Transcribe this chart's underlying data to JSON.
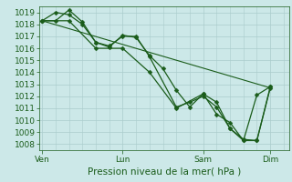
{
  "title": "",
  "xlabel": "Pression niveau de la mer( hPa )",
  "ylim": [
    1007.5,
    1019.5
  ],
  "yticks": [
    1008,
    1009,
    1010,
    1011,
    1012,
    1013,
    1014,
    1015,
    1016,
    1017,
    1018,
    1019
  ],
  "bg_color": "#cce8e8",
  "grid_color": "#aacccc",
  "line_color": "#1a5c1a",
  "marker_color": "#1a5c1a",
  "text_color": "#1a5c1a",
  "xtick_labels": [
    "| Ven",
    "| Lun",
    "| Sam",
    "| Dim"
  ],
  "xtick_positions": [
    0.0,
    3.0,
    6.0,
    8.5
  ],
  "series1_x": [
    0.0,
    0.5,
    1.0,
    1.5,
    2.0,
    2.5,
    3.0,
    3.5,
    4.0,
    4.5,
    5.0,
    5.5,
    6.0,
    6.5,
    7.0,
    7.5,
    8.0,
    8.5
  ],
  "series1_y": [
    1018.3,
    1019.0,
    1018.8,
    1018.0,
    1016.5,
    1016.1,
    1017.1,
    1016.9,
    1015.4,
    1014.3,
    1012.5,
    1011.1,
    1012.2,
    1011.5,
    1009.3,
    1008.4,
    1008.3,
    1012.7
  ],
  "series2_x": [
    0.0,
    0.5,
    1.0,
    1.5,
    2.0,
    2.5,
    3.0,
    3.5,
    4.0,
    5.0,
    5.5,
    6.0,
    6.5,
    7.0,
    7.5,
    8.0,
    8.5
  ],
  "series2_y": [
    1018.3,
    1018.3,
    1019.2,
    1018.2,
    1016.5,
    1016.2,
    1017.0,
    1017.0,
    1015.3,
    1011.1,
    1011.5,
    1012.0,
    1011.1,
    1009.3,
    1008.3,
    1008.3,
    1012.8
  ],
  "series3_x": [
    0.0,
    1.0,
    2.0,
    3.0,
    4.0,
    5.0,
    6.0,
    6.5,
    7.0,
    7.5,
    8.0,
    8.5
  ],
  "series3_y": [
    1018.3,
    1018.3,
    1016.0,
    1016.0,
    1014.0,
    1011.0,
    1012.2,
    1010.5,
    1009.8,
    1008.3,
    1012.1,
    1012.8
  ],
  "trend_x": [
    0.0,
    8.5
  ],
  "trend_y": [
    1018.3,
    1012.7
  ],
  "xlim": [
    -0.1,
    9.2
  ],
  "font_size_tick": 6.5,
  "font_size_label": 7.5
}
